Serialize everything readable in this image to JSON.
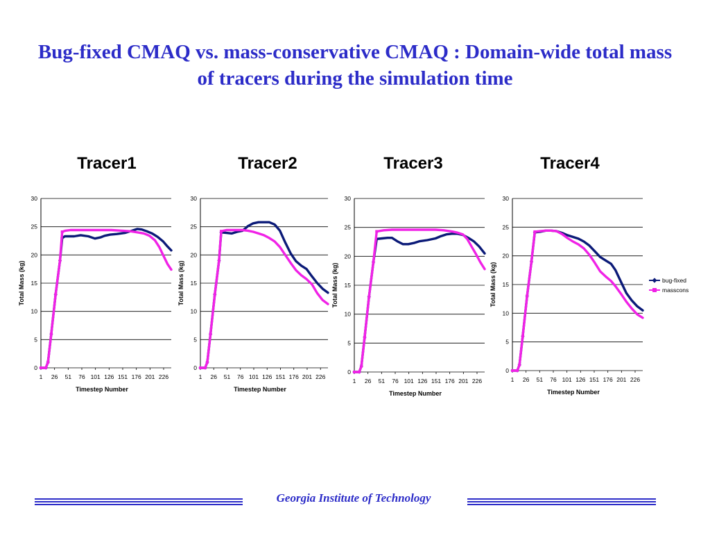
{
  "title": "Bug-fixed CMAQ vs. mass-conservative CMAQ : Domain-wide total mass of tracers during the simulation time",
  "footer": "Georgia Institute of Technology",
  "colors": {
    "title": "#2c2cc8",
    "bugfixed": "#0b1a78",
    "masscons": "#f022e6",
    "footer": "#2c2cc8"
  },
  "legend": [
    "bug-fixed",
    "masscons"
  ],
  "chart_data": [
    {
      "type": "line",
      "title": "Tracer1",
      "xlabel": "Timestep Number",
      "ylabel": "Total Mass (kg)",
      "ylim": [
        0,
        30
      ],
      "yticks": [
        0,
        5,
        10,
        15,
        20,
        25,
        30
      ],
      "xticks": [
        "1",
        "26",
        "51",
        "76",
        "101",
        "126",
        "151",
        "176",
        "201",
        "226"
      ],
      "xrange": [
        1,
        240
      ],
      "grid": true,
      "series": [
        {
          "name": "bug-fixed",
          "x": [
            1,
            10,
            14,
            20,
            28,
            36,
            40,
            45,
            50,
            62,
            74,
            88,
            100,
            110,
            118,
            128,
            140,
            155,
            168,
            178,
            186,
            195,
            205,
            215,
            225,
            233,
            240
          ],
          "y": [
            0,
            0,
            1,
            6,
            13,
            19,
            23,
            23.3,
            23.3,
            23.3,
            23.5,
            23.3,
            22.9,
            23.1,
            23.4,
            23.6,
            23.7,
            23.9,
            24.3,
            24.6,
            24.5,
            24.2,
            23.8,
            23.2,
            22.4,
            21.5,
            20.8
          ]
        },
        {
          "name": "masscons",
          "x": [
            1,
            10,
            14,
            20,
            28,
            36,
            40,
            46,
            55,
            70,
            90,
            110,
            130,
            150,
            165,
            178,
            190,
            200,
            210,
            218,
            226,
            233,
            240
          ],
          "y": [
            0,
            0,
            1,
            6,
            13,
            19,
            24.1,
            24.3,
            24.4,
            24.4,
            24.4,
            24.4,
            24.4,
            24.3,
            24.2,
            24,
            23.8,
            23.4,
            22.6,
            21.4,
            19.8,
            18.4,
            17.4
          ]
        }
      ]
    },
    {
      "type": "line",
      "title": "Tracer2",
      "xlabel": "Timestep Number",
      "ylabel": "Total Mass (kg)",
      "ylim": [
        0,
        30
      ],
      "yticks": [
        0,
        5,
        10,
        15,
        20,
        25,
        30
      ],
      "xticks": [
        "1",
        "26",
        "51",
        "76",
        "101",
        "126",
        "151",
        "176",
        "201",
        "226"
      ],
      "xrange": [
        1,
        240
      ],
      "grid": true,
      "series": [
        {
          "name": "bug-fixed",
          "x": [
            1,
            10,
            14,
            20,
            28,
            36,
            40,
            50,
            60,
            70,
            80,
            90,
            100,
            110,
            120,
            130,
            140,
            150,
            160,
            170,
            180,
            190,
            200,
            210,
            220,
            230,
            240
          ],
          "y": [
            0,
            0,
            1,
            6,
            13,
            19,
            24,
            23.9,
            23.8,
            24.1,
            24.3,
            25.1,
            25.6,
            25.8,
            25.8,
            25.8,
            25.4,
            24.3,
            22.2,
            20.3,
            18.9,
            18.1,
            17.5,
            16.2,
            15,
            14,
            13.3
          ]
        },
        {
          "name": "masscons",
          "x": [
            1,
            10,
            14,
            20,
            28,
            36,
            40,
            50,
            60,
            70,
            80,
            90,
            100,
            110,
            120,
            130,
            140,
            150,
            160,
            170,
            180,
            190,
            200,
            210,
            220,
            230,
            240
          ],
          "y": [
            0,
            0,
            1,
            6,
            13,
            19,
            24.2,
            24.4,
            24.4,
            24.4,
            24.4,
            24.3,
            24.1,
            23.8,
            23.5,
            23,
            22.4,
            21.4,
            20,
            18.6,
            17.3,
            16.4,
            15.7,
            14.8,
            13.2,
            12,
            11.3
          ]
        }
      ]
    },
    {
      "type": "line",
      "title": "Tracer3",
      "xlabel": "Timestep Number",
      "ylabel": "Total Mass (kg)",
      "ylim": [
        0,
        30
      ],
      "yticks": [
        0,
        5,
        10,
        15,
        20,
        25,
        30
      ],
      "xticks": [
        "1",
        "26",
        "51",
        "76",
        "101",
        "126",
        "151",
        "176",
        "201",
        "226"
      ],
      "xrange": [
        1,
        240
      ],
      "grid": true,
      "series": [
        {
          "name": "bug-fixed",
          "x": [
            1,
            10,
            14,
            20,
            28,
            36,
            42,
            52,
            62,
            70,
            80,
            90,
            100,
            110,
            120,
            135,
            150,
            160,
            170,
            180,
            190,
            200,
            210,
            220,
            230,
            240
          ],
          "y": [
            0,
            0,
            1,
            6,
            13,
            19,
            23,
            23.1,
            23.2,
            23.2,
            22.6,
            22.1,
            22.1,
            22.3,
            22.6,
            22.8,
            23.1,
            23.5,
            23.8,
            23.9,
            23.9,
            23.7,
            23.2,
            22.6,
            21.7,
            20.5
          ]
        },
        {
          "name": "masscons",
          "x": [
            1,
            10,
            14,
            20,
            28,
            36,
            42,
            55,
            70,
            90,
            110,
            130,
            150,
            165,
            180,
            190,
            200,
            208,
            216,
            224,
            232,
            240
          ],
          "y": [
            0,
            0,
            1,
            6,
            13,
            19,
            24.3,
            24.5,
            24.6,
            24.6,
            24.6,
            24.6,
            24.6,
            24.5,
            24.3,
            24.1,
            23.8,
            23,
            21.7,
            20.4,
            19,
            17.8
          ]
        }
      ]
    },
    {
      "type": "line",
      "title": "Tracer4",
      "xlabel": "Timestep Number",
      "ylabel": "Total Mass (kg)",
      "ylim": [
        0,
        30
      ],
      "yticks": [
        0,
        5,
        10,
        15,
        20,
        25,
        30
      ],
      "xticks": [
        "1",
        "26",
        "51",
        "76",
        "101",
        "126",
        "151",
        "176",
        "201",
        "226"
      ],
      "xrange": [
        1,
        240
      ],
      "grid": true,
      "series": [
        {
          "name": "bug-fixed",
          "x": [
            1,
            10,
            14,
            20,
            28,
            36,
            42,
            52,
            62,
            72,
            82,
            92,
            102,
            112,
            122,
            132,
            142,
            152,
            162,
            172,
            182,
            190,
            200,
            210,
            220,
            230,
            240
          ],
          "y": [
            0,
            0,
            1,
            6,
            13,
            19,
            24.1,
            24.2,
            24.4,
            24.4,
            24.3,
            24,
            23.6,
            23.3,
            23,
            22.5,
            21.8,
            20.8,
            19.8,
            19.2,
            18.6,
            17.5,
            15.5,
            13.5,
            12.2,
            11.2,
            10.5
          ]
        },
        {
          "name": "masscons",
          "x": [
            1,
            10,
            14,
            20,
            28,
            36,
            42,
            52,
            62,
            72,
            82,
            92,
            102,
            112,
            122,
            132,
            142,
            152,
            162,
            172,
            182,
            190,
            200,
            210,
            220,
            230,
            240
          ],
          "y": [
            0,
            0,
            1,
            6,
            13,
            19,
            24.2,
            24.3,
            24.4,
            24.4,
            24.3,
            23.8,
            23.1,
            22.5,
            22,
            21.3,
            20.2,
            18.8,
            17.3,
            16.4,
            15.6,
            14.7,
            13.4,
            12,
            10.8,
            9.8,
            9.2
          ]
        }
      ]
    }
  ]
}
